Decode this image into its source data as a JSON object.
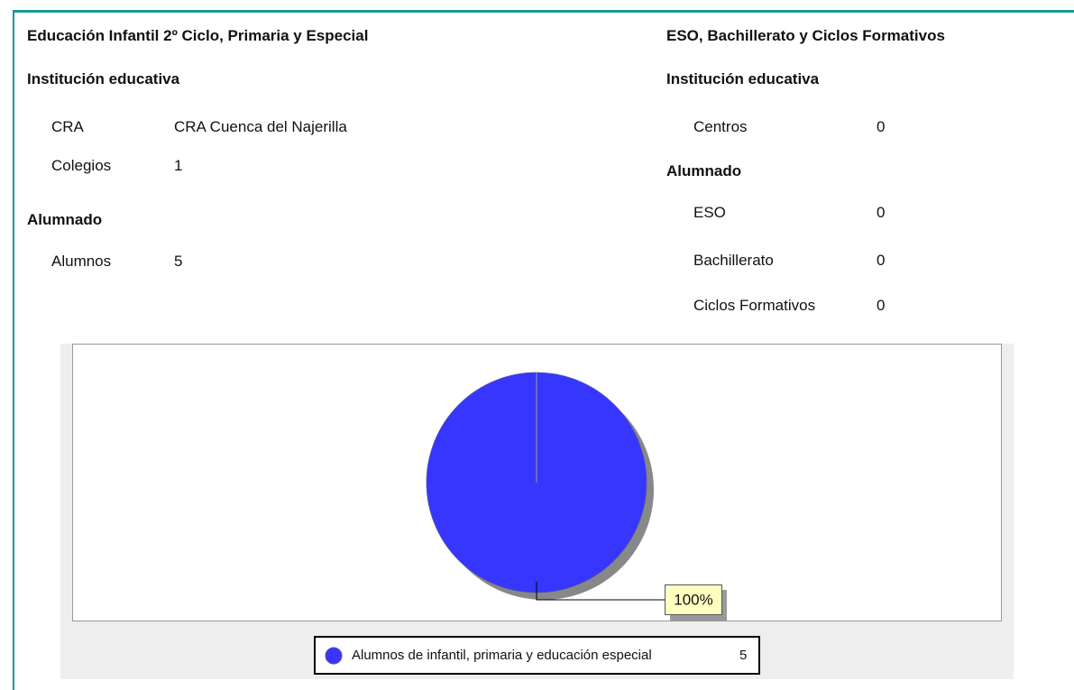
{
  "left": {
    "title": "Educación Infantil 2º Ciclo, Primaria y Especial",
    "sections": [
      {
        "heading": "Institución educativa",
        "rows": [
          [
            "CRA",
            "CRA Cuenca del Najerilla"
          ],
          [
            "Colegios",
            1
          ]
        ]
      },
      {
        "heading": "Alumnado",
        "rows": [
          [
            "Alumnos",
            5
          ]
        ]
      }
    ]
  },
  "right": {
    "title": "ESO, Bachillerato y Ciclos Formativos",
    "sections": [
      {
        "heading": "Institución educativa",
        "rows": [
          [
            "Centros",
            0
          ]
        ]
      },
      {
        "heading": "Alumnado",
        "rows": [
          [
            "ESO",
            0
          ],
          [
            "Bachillerato",
            0
          ],
          [
            "Ciclos Formativos",
            0
          ]
        ]
      }
    ]
  },
  "chart_data": {
    "type": "pie",
    "categories": [
      "Alumnos de infantil, primaria y educación especial"
    ],
    "values": [
      5
    ],
    "colors": [
      "#3636ff"
    ],
    "percentages": [
      100
    ],
    "percentage_labels": [
      "100%"
    ]
  }
}
